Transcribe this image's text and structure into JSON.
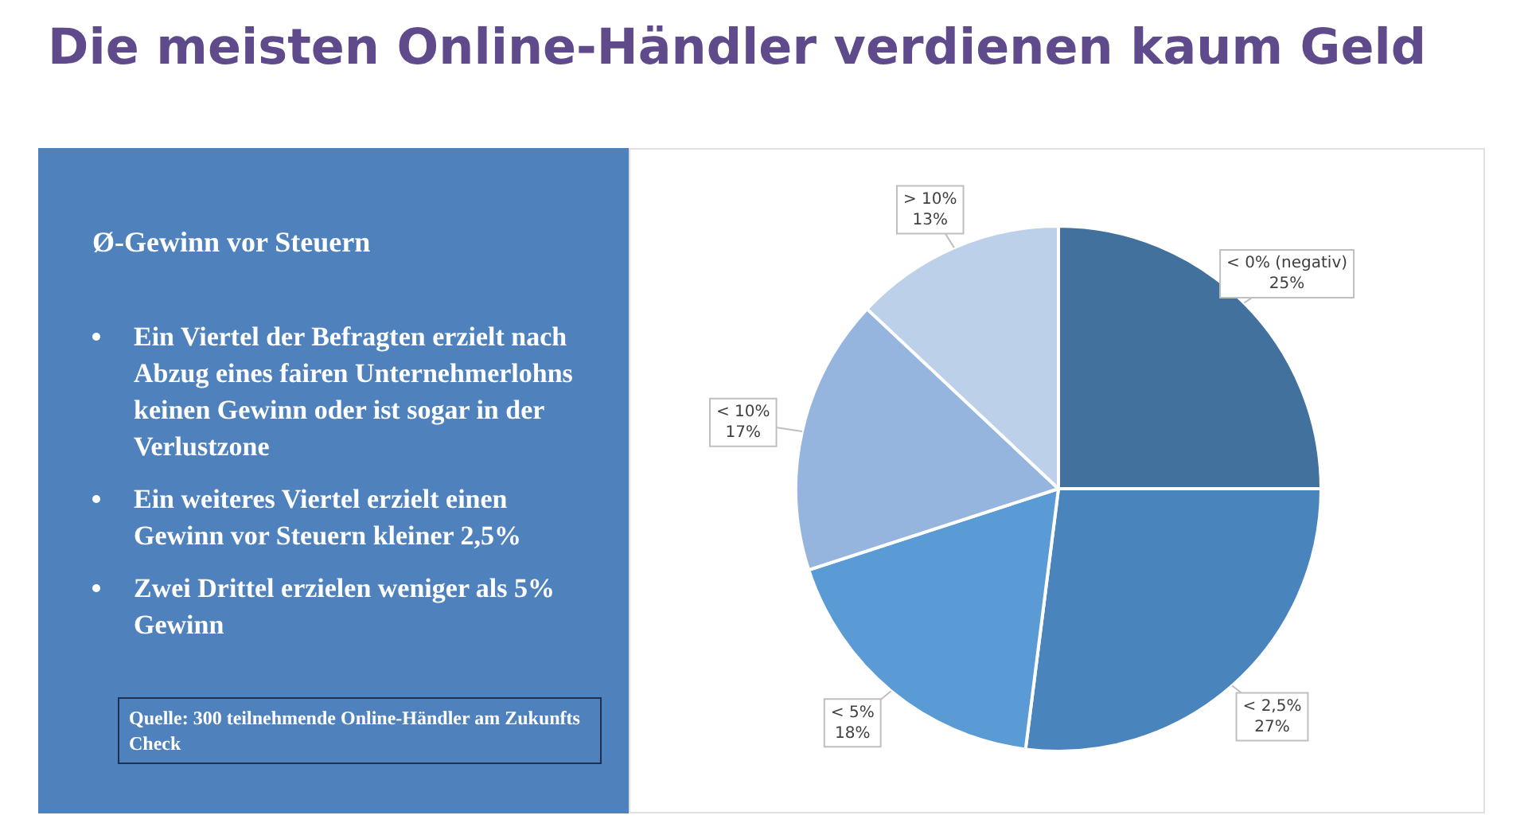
{
  "chart_data": {
    "type": "pie",
    "title": "Die meisten Online-Händler verdienen kaum Geld",
    "subtitle": "Ø-Gewinn vor Steuern",
    "categories": [
      "< 0% (negativ)",
      "< 2,5%",
      "< 5%",
      "< 10%",
      "> 10%"
    ],
    "values": [
      25,
      27,
      18,
      17,
      13
    ],
    "value_labels": [
      "25%",
      "27%",
      "18%",
      "17%",
      "13%"
    ],
    "colors": [
      "#41719c",
      "#4a84bd",
      "#5b9bd5",
      "#95b4de",
      "#bcd0ea"
    ],
    "legend": false,
    "annotations": [
      "Ein Viertel der Befragten erzielt nach Abzug eines fairen Unternehmerlohns keinen Gewinn oder ist sogar in der Verlustzone",
      "Ein weiteres Viertel erzielt einen Gewinn vor Steuern kleiner 2,5%",
      "Zwei Drittel erzielen weniger als 5% Gewinn",
      "Quelle: 300 teilnehmende Online-Händler am Zukunfts Check"
    ]
  }
}
